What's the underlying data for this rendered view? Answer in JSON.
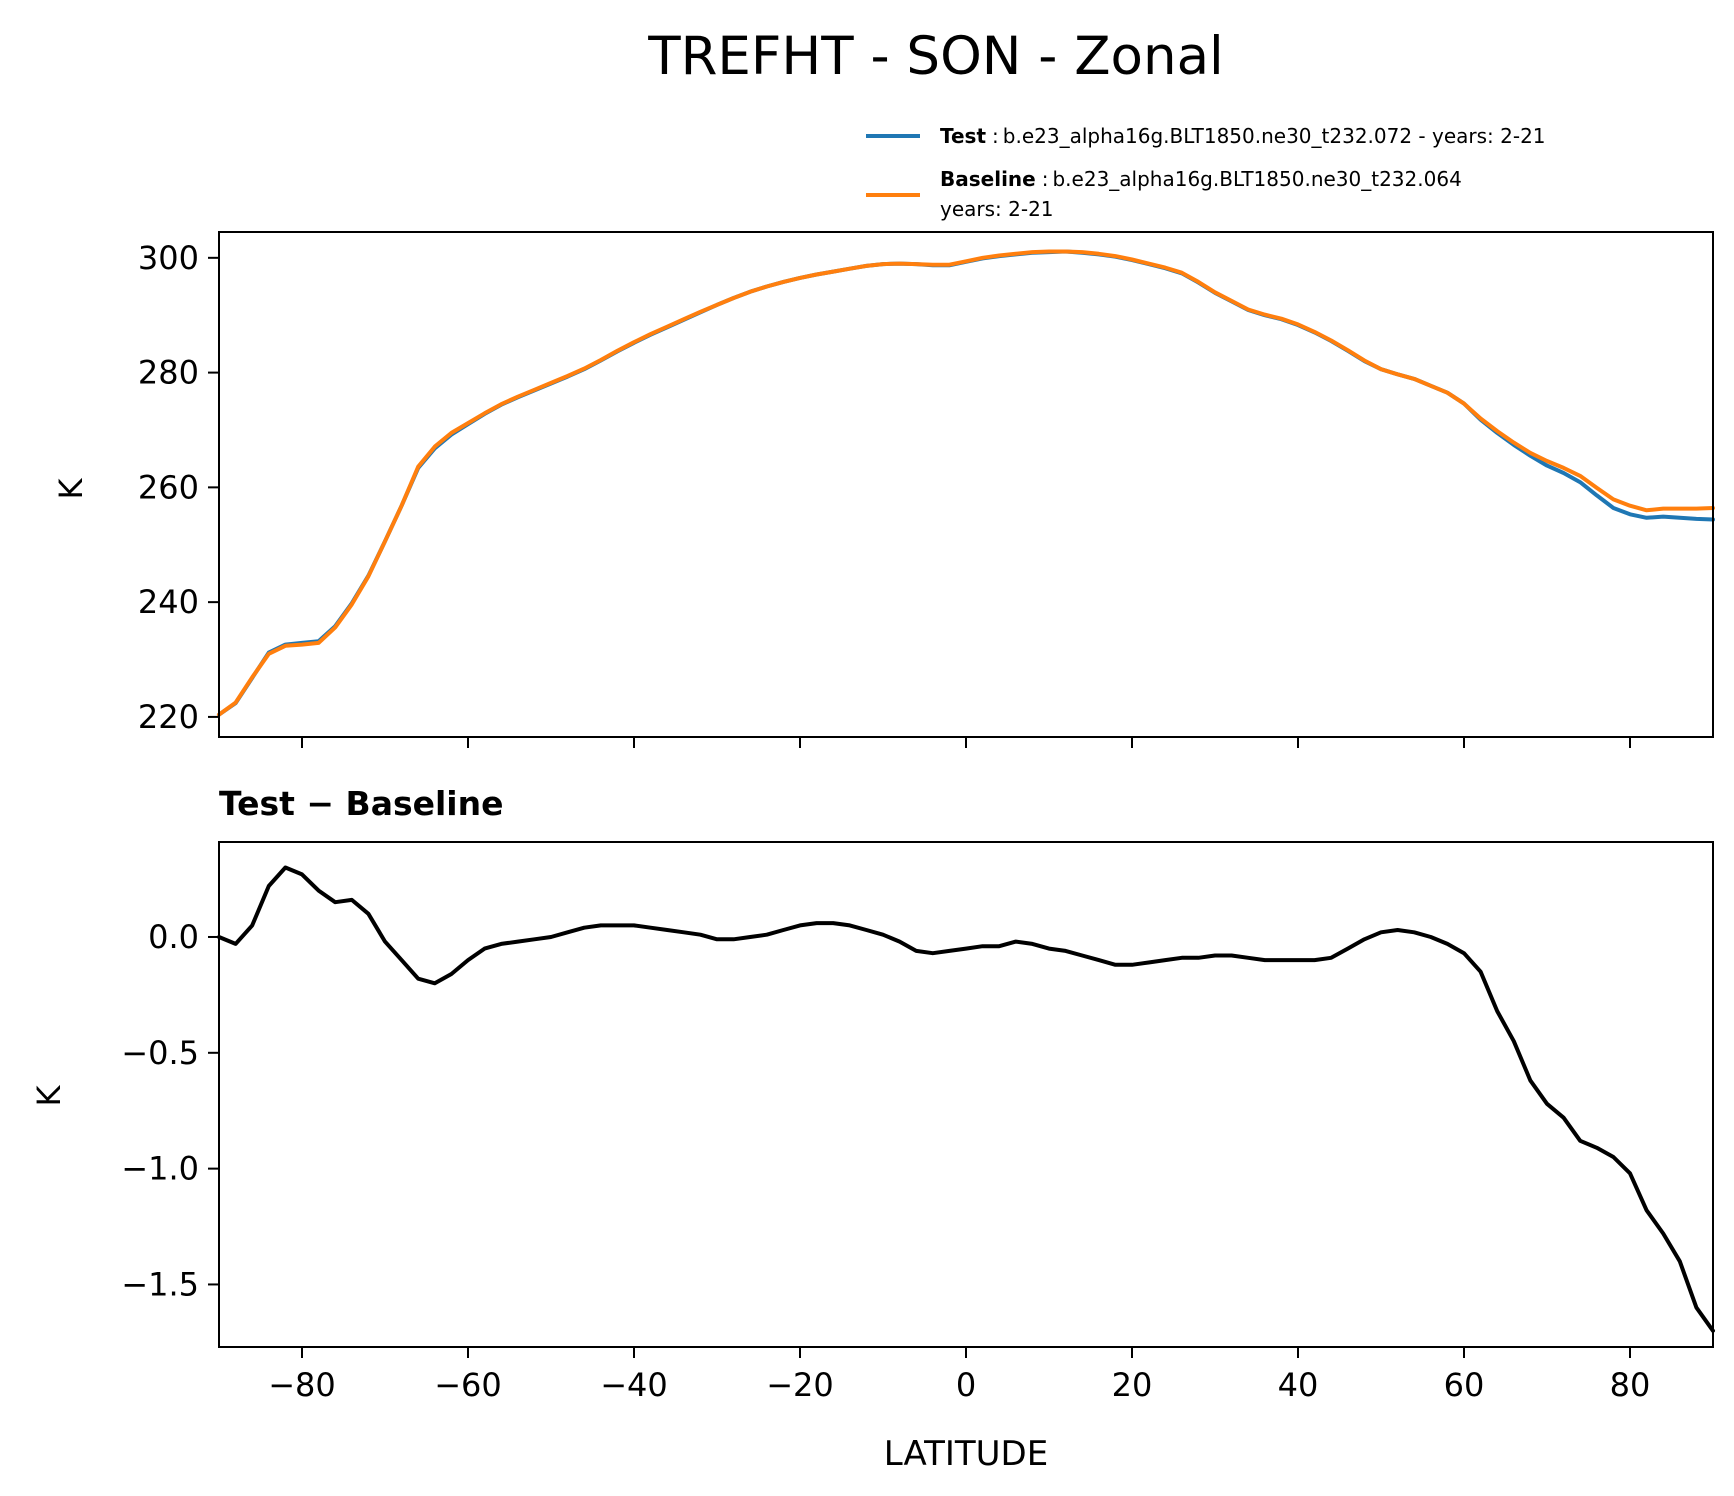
{
  "figure": {
    "title": "TREFHT - SON - Zonal"
  },
  "colors": {
    "test": "#1f77b4",
    "baseline": "#ff7f0e",
    "diff": "#000000",
    "axes": "#000000",
    "background": "#ffffff"
  },
  "legend": {
    "entries": [
      {
        "name": "Test",
        "sep": ":",
        "line1": "b.e23_alpha16g.BLT1850.ne30_t232.072 - years: 2-21",
        "line2": ""
      },
      {
        "name": "Baseline",
        "sep": ":",
        "line1": "b.e23_alpha16g.BLT1850.ne30_t232.064",
        "line2": "years: 2-21"
      }
    ]
  },
  "chart_data": [
    {
      "type": "line",
      "title": "",
      "xlabel": "",
      "ylabel": "K",
      "xlim": [
        -90,
        90
      ],
      "ylim": [
        216.5,
        304.5
      ],
      "yticks": [
        220,
        240,
        260,
        280,
        300
      ],
      "ytick_labels": [
        "220",
        "240",
        "260",
        "280",
        "300"
      ],
      "grid": false,
      "legend_position": "above-right",
      "x": [
        -90,
        -88,
        -86,
        -84,
        -82,
        -80,
        -78,
        -76,
        -74,
        -72,
        -70,
        -68,
        -66,
        -64,
        -62,
        -60,
        -58,
        -56,
        -54,
        -52,
        -50,
        -48,
        -46,
        -44,
        -42,
        -40,
        -38,
        -36,
        -34,
        -32,
        -30,
        -28,
        -26,
        -24,
        -22,
        -20,
        -18,
        -16,
        -14,
        -12,
        -10,
        -8,
        -6,
        -4,
        -2,
        0,
        2,
        4,
        6,
        8,
        10,
        12,
        14,
        16,
        18,
        20,
        22,
        24,
        26,
        28,
        30,
        32,
        34,
        36,
        38,
        40,
        42,
        44,
        46,
        48,
        50,
        52,
        54,
        56,
        58,
        60,
        62,
        64,
        66,
        68,
        70,
        72,
        74,
        76,
        78,
        80,
        82,
        84,
        86,
        88,
        90
      ],
      "series": [
        {
          "name": "Test",
          "color": "#1f77b4",
          "values": [
            220.4,
            222.4,
            226.8,
            231.2,
            232.6,
            232.9,
            233.2,
            235.8,
            239.8,
            244.6,
            250.6,
            256.8,
            263.4,
            266.8,
            269.2,
            271.0,
            272.8,
            274.4,
            275.7,
            276.9,
            278.1,
            279.3,
            280.6,
            282.1,
            283.7,
            285.2,
            286.6,
            287.9,
            289.2,
            290.5,
            291.8,
            293.0,
            294.1,
            295.0,
            295.8,
            296.5,
            297.1,
            297.6,
            298.1,
            298.6,
            298.9,
            299.0,
            298.9,
            298.7,
            298.7,
            299.3,
            299.9,
            300.3,
            300.6,
            300.9,
            301.0,
            301.1,
            300.9,
            300.6,
            300.2,
            299.6,
            298.9,
            298.2,
            297.3,
            295.7,
            293.9,
            292.4,
            290.9,
            290.0,
            289.3,
            288.3,
            287.0,
            285.5,
            283.8,
            282.0,
            280.6,
            279.7,
            278.9,
            277.7,
            276.5,
            274.6,
            271.8,
            269.5,
            267.4,
            265.5,
            263.8,
            262.5,
            260.9,
            258.6,
            256.4,
            255.3,
            254.7,
            254.9,
            254.7,
            254.5,
            254.4
          ]
        },
        {
          "name": "Baseline",
          "color": "#ff7f0e",
          "values": [
            220.4,
            222.5,
            226.9,
            231.0,
            232.4,
            232.6,
            232.9,
            235.6,
            239.6,
            244.5,
            250.6,
            256.8,
            263.6,
            267.1,
            269.5,
            271.2,
            272.9,
            274.5,
            275.8,
            277.0,
            278.2,
            279.4,
            280.7,
            282.2,
            283.8,
            285.3,
            286.7,
            288.0,
            289.3,
            290.6,
            291.8,
            293.0,
            294.1,
            295.0,
            295.8,
            296.5,
            297.1,
            297.6,
            298.1,
            298.6,
            298.9,
            299.0,
            298.9,
            298.8,
            298.8,
            299.4,
            300.0,
            300.4,
            300.7,
            301.0,
            301.1,
            301.1,
            301.0,
            300.7,
            300.3,
            299.7,
            299.0,
            298.3,
            297.4,
            295.8,
            294.0,
            292.5,
            291.0,
            290.1,
            289.4,
            288.4,
            287.1,
            285.6,
            283.9,
            282.1,
            280.6,
            279.7,
            278.9,
            277.7,
            276.5,
            274.6,
            272.0,
            269.8,
            267.8,
            266.0,
            264.6,
            263.4,
            262.0,
            259.9,
            257.9,
            256.8,
            256.0,
            256.3,
            256.3,
            256.3,
            256.4
          ]
        }
      ]
    },
    {
      "type": "line",
      "title": "Test − Baseline",
      "xlabel": "LATITUDE",
      "ylabel": "K",
      "xlim": [
        -90,
        90
      ],
      "ylim": [
        -1.77,
        0.41
      ],
      "xticks": [
        -80,
        -60,
        -40,
        -20,
        0,
        20,
        40,
        60,
        80
      ],
      "xtick_labels": [
        "−80",
        "−60",
        "−40",
        "−20",
        "0",
        "20",
        "40",
        "60",
        "80"
      ],
      "yticks": [
        0.0,
        -0.5,
        -1.0,
        -1.5
      ],
      "ytick_labels": [
        "0.0",
        "−0.5",
        "−1.0",
        "−1.5"
      ],
      "grid": false,
      "x": [
        -90,
        -88,
        -86,
        -84,
        -82,
        -80,
        -78,
        -76,
        -74,
        -72,
        -70,
        -68,
        -66,
        -64,
        -62,
        -60,
        -58,
        -56,
        -54,
        -52,
        -50,
        -48,
        -46,
        -44,
        -42,
        -40,
        -38,
        -36,
        -34,
        -32,
        -30,
        -28,
        -26,
        -24,
        -22,
        -20,
        -18,
        -16,
        -14,
        -12,
        -10,
        -8,
        -6,
        -4,
        -2,
        0,
        2,
        4,
        6,
        8,
        10,
        12,
        14,
        16,
        18,
        20,
        22,
        24,
        26,
        28,
        30,
        32,
        34,
        36,
        38,
        40,
        42,
        44,
        46,
        48,
        50,
        52,
        54,
        56,
        58,
        60,
        62,
        64,
        66,
        68,
        70,
        72,
        74,
        76,
        78,
        80,
        82,
        84,
        86,
        88,
        90
      ],
      "series": [
        {
          "name": "Test − Baseline",
          "color": "#000000",
          "values": [
            0.0,
            -0.03,
            0.05,
            0.22,
            0.3,
            0.27,
            0.2,
            0.15,
            0.16,
            0.1,
            -0.02,
            -0.1,
            -0.18,
            -0.2,
            -0.16,
            -0.1,
            -0.05,
            -0.03,
            -0.02,
            -0.01,
            0.0,
            0.02,
            0.04,
            0.05,
            0.05,
            0.05,
            0.04,
            0.03,
            0.02,
            0.01,
            -0.01,
            -0.01,
            0.0,
            0.01,
            0.03,
            0.05,
            0.06,
            0.06,
            0.05,
            0.03,
            0.01,
            -0.02,
            -0.06,
            -0.07,
            -0.06,
            -0.05,
            -0.04,
            -0.04,
            -0.02,
            -0.03,
            -0.05,
            -0.06,
            -0.08,
            -0.1,
            -0.12,
            -0.12,
            -0.11,
            -0.1,
            -0.09,
            -0.09,
            -0.08,
            -0.08,
            -0.09,
            -0.1,
            -0.1,
            -0.1,
            -0.1,
            -0.09,
            -0.05,
            -0.01,
            0.02,
            0.03,
            0.02,
            0.0,
            -0.03,
            -0.07,
            -0.15,
            -0.32,
            -0.45,
            -0.62,
            -0.72,
            -0.78,
            -0.88,
            -0.91,
            -0.95,
            -1.02,
            -1.18,
            -1.28,
            -1.4,
            -1.6,
            -1.7
          ]
        }
      ]
    }
  ]
}
